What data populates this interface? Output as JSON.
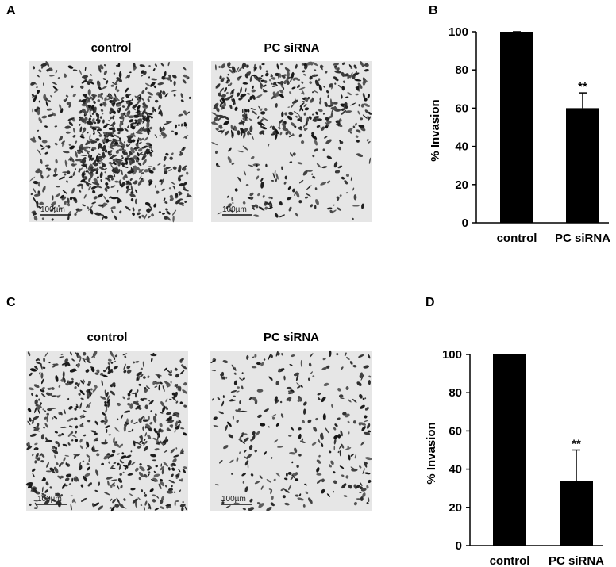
{
  "panels": {
    "A": {
      "label": "A",
      "images": [
        {
          "title": "control",
          "scale": "100µm"
        },
        {
          "title": "PC siRNA",
          "scale": "100µm"
        }
      ]
    },
    "B": {
      "label": "B"
    },
    "C": {
      "label": "C",
      "images": [
        {
          "title": "control",
          "scale": "100µm"
        },
        {
          "title": "PC siRNA",
          "scale": "100µm"
        }
      ]
    },
    "D": {
      "label": "D"
    }
  },
  "chart_data": [
    {
      "type": "bar",
      "ylabel": "% Invasion",
      "categories": [
        "control",
        "PC siRNA"
      ],
      "values": [
        100,
        60
      ],
      "errors": [
        0,
        8
      ],
      "color": "#000000",
      "annotation": "**",
      "ylim": [
        0,
        100
      ],
      "yticks": [
        0,
        20,
        40,
        60,
        80,
        100
      ]
    },
    {
      "type": "bar",
      "ylabel": "% Invasion",
      "categories": [
        "control",
        "PC siRNA"
      ],
      "values": [
        100,
        34
      ],
      "errors": [
        0,
        16
      ],
      "color": "#000000",
      "annotation": "**",
      "ylim": [
        0,
        100
      ],
      "yticks": [
        0,
        20,
        40,
        60,
        80,
        100
      ]
    }
  ]
}
